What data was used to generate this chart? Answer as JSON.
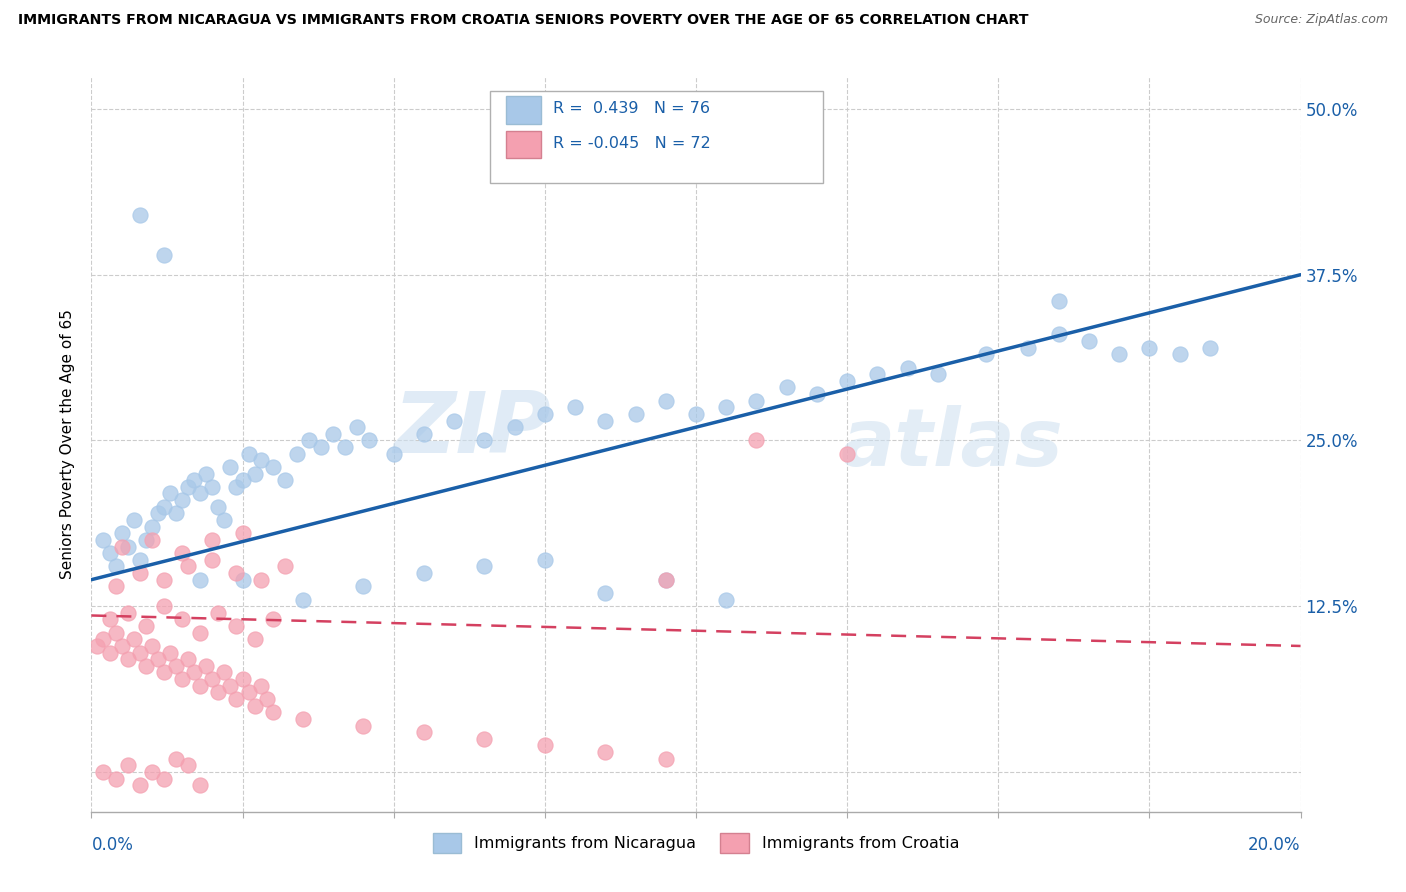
{
  "title": "IMMIGRANTS FROM NICARAGUA VS IMMIGRANTS FROM CROATIA SENIORS POVERTY OVER THE AGE OF 65 CORRELATION CHART",
  "source": "Source: ZipAtlas.com",
  "ylabel_label": "Seniors Poverty Over the Age of 65",
  "legend_blue_label": "Immigrants from Nicaragua",
  "legend_pink_label": "Immigrants from Croatia",
  "R_blue": "0.439",
  "N_blue": "76",
  "R_pink": "-0.045",
  "N_pink": "72",
  "blue_color": "#a8c8e8",
  "pink_color": "#f4a0b0",
  "blue_line_color": "#1a5fa8",
  "pink_line_color": "#d44060",
  "xlim": [
    0.0,
    0.2
  ],
  "ylim_low": -0.03,
  "ylim_high": 0.525,
  "yticks": [
    0.0,
    0.125,
    0.25,
    0.375,
    0.5
  ],
  "ytick_labels": [
    "",
    "12.5%",
    "25.0%",
    "37.5%",
    "50.0%"
  ],
  "blue_line_x0": 0.0,
  "blue_line_y0": 0.145,
  "blue_line_x1": 0.2,
  "blue_line_y1": 0.375,
  "pink_line_x0": 0.0,
  "pink_line_y0": 0.118,
  "pink_line_x1": 0.2,
  "pink_line_y1": 0.095,
  "blue_scatter_x": [
    0.002,
    0.003,
    0.004,
    0.005,
    0.006,
    0.007,
    0.008,
    0.009,
    0.01,
    0.011,
    0.012,
    0.013,
    0.014,
    0.015,
    0.016,
    0.017,
    0.018,
    0.019,
    0.02,
    0.021,
    0.022,
    0.023,
    0.024,
    0.025,
    0.026,
    0.027,
    0.028,
    0.03,
    0.032,
    0.034,
    0.036,
    0.038,
    0.04,
    0.042,
    0.044,
    0.046,
    0.05,
    0.055,
    0.06,
    0.065,
    0.07,
    0.075,
    0.08,
    0.085,
    0.09,
    0.095,
    0.1,
    0.105,
    0.11,
    0.115,
    0.12,
    0.125,
    0.13,
    0.135,
    0.14,
    0.148,
    0.155,
    0.16,
    0.165,
    0.17,
    0.175,
    0.18,
    0.185,
    0.008,
    0.012,
    0.018,
    0.025,
    0.035,
    0.045,
    0.055,
    0.065,
    0.075,
    0.085,
    0.095,
    0.105,
    0.16
  ],
  "blue_scatter_y": [
    0.175,
    0.165,
    0.155,
    0.18,
    0.17,
    0.19,
    0.16,
    0.175,
    0.185,
    0.195,
    0.2,
    0.21,
    0.195,
    0.205,
    0.215,
    0.22,
    0.21,
    0.225,
    0.215,
    0.2,
    0.19,
    0.23,
    0.215,
    0.22,
    0.24,
    0.225,
    0.235,
    0.23,
    0.22,
    0.24,
    0.25,
    0.245,
    0.255,
    0.245,
    0.26,
    0.25,
    0.24,
    0.255,
    0.265,
    0.25,
    0.26,
    0.27,
    0.275,
    0.265,
    0.27,
    0.28,
    0.27,
    0.275,
    0.28,
    0.29,
    0.285,
    0.295,
    0.3,
    0.305,
    0.3,
    0.315,
    0.32,
    0.33,
    0.325,
    0.315,
    0.32,
    0.315,
    0.32,
    0.42,
    0.39,
    0.145,
    0.145,
    0.13,
    0.14,
    0.15,
    0.155,
    0.16,
    0.135,
    0.145,
    0.13,
    0.355
  ],
  "pink_scatter_x": [
    0.001,
    0.002,
    0.003,
    0.004,
    0.005,
    0.006,
    0.007,
    0.008,
    0.009,
    0.01,
    0.011,
    0.012,
    0.013,
    0.014,
    0.015,
    0.016,
    0.017,
    0.018,
    0.019,
    0.02,
    0.021,
    0.022,
    0.023,
    0.024,
    0.025,
    0.026,
    0.027,
    0.028,
    0.029,
    0.03,
    0.003,
    0.006,
    0.009,
    0.012,
    0.015,
    0.018,
    0.021,
    0.024,
    0.027,
    0.03,
    0.004,
    0.008,
    0.012,
    0.016,
    0.02,
    0.024,
    0.028,
    0.032,
    0.005,
    0.01,
    0.015,
    0.02,
    0.025,
    0.035,
    0.045,
    0.055,
    0.065,
    0.075,
    0.085,
    0.095,
    0.002,
    0.004,
    0.006,
    0.008,
    0.01,
    0.012,
    0.014,
    0.016,
    0.018,
    0.095,
    0.11,
    0.125
  ],
  "pink_scatter_y": [
    0.095,
    0.1,
    0.09,
    0.105,
    0.095,
    0.085,
    0.1,
    0.09,
    0.08,
    0.095,
    0.085,
    0.075,
    0.09,
    0.08,
    0.07,
    0.085,
    0.075,
    0.065,
    0.08,
    0.07,
    0.06,
    0.075,
    0.065,
    0.055,
    0.07,
    0.06,
    0.05,
    0.065,
    0.055,
    0.045,
    0.115,
    0.12,
    0.11,
    0.125,
    0.115,
    0.105,
    0.12,
    0.11,
    0.1,
    0.115,
    0.14,
    0.15,
    0.145,
    0.155,
    0.16,
    0.15,
    0.145,
    0.155,
    0.17,
    0.175,
    0.165,
    0.175,
    0.18,
    0.04,
    0.035,
    0.03,
    0.025,
    0.02,
    0.015,
    0.01,
    0.0,
    -0.005,
    0.005,
    -0.01,
    0.0,
    -0.005,
    0.01,
    0.005,
    -0.01,
    0.145,
    0.25,
    0.24
  ]
}
